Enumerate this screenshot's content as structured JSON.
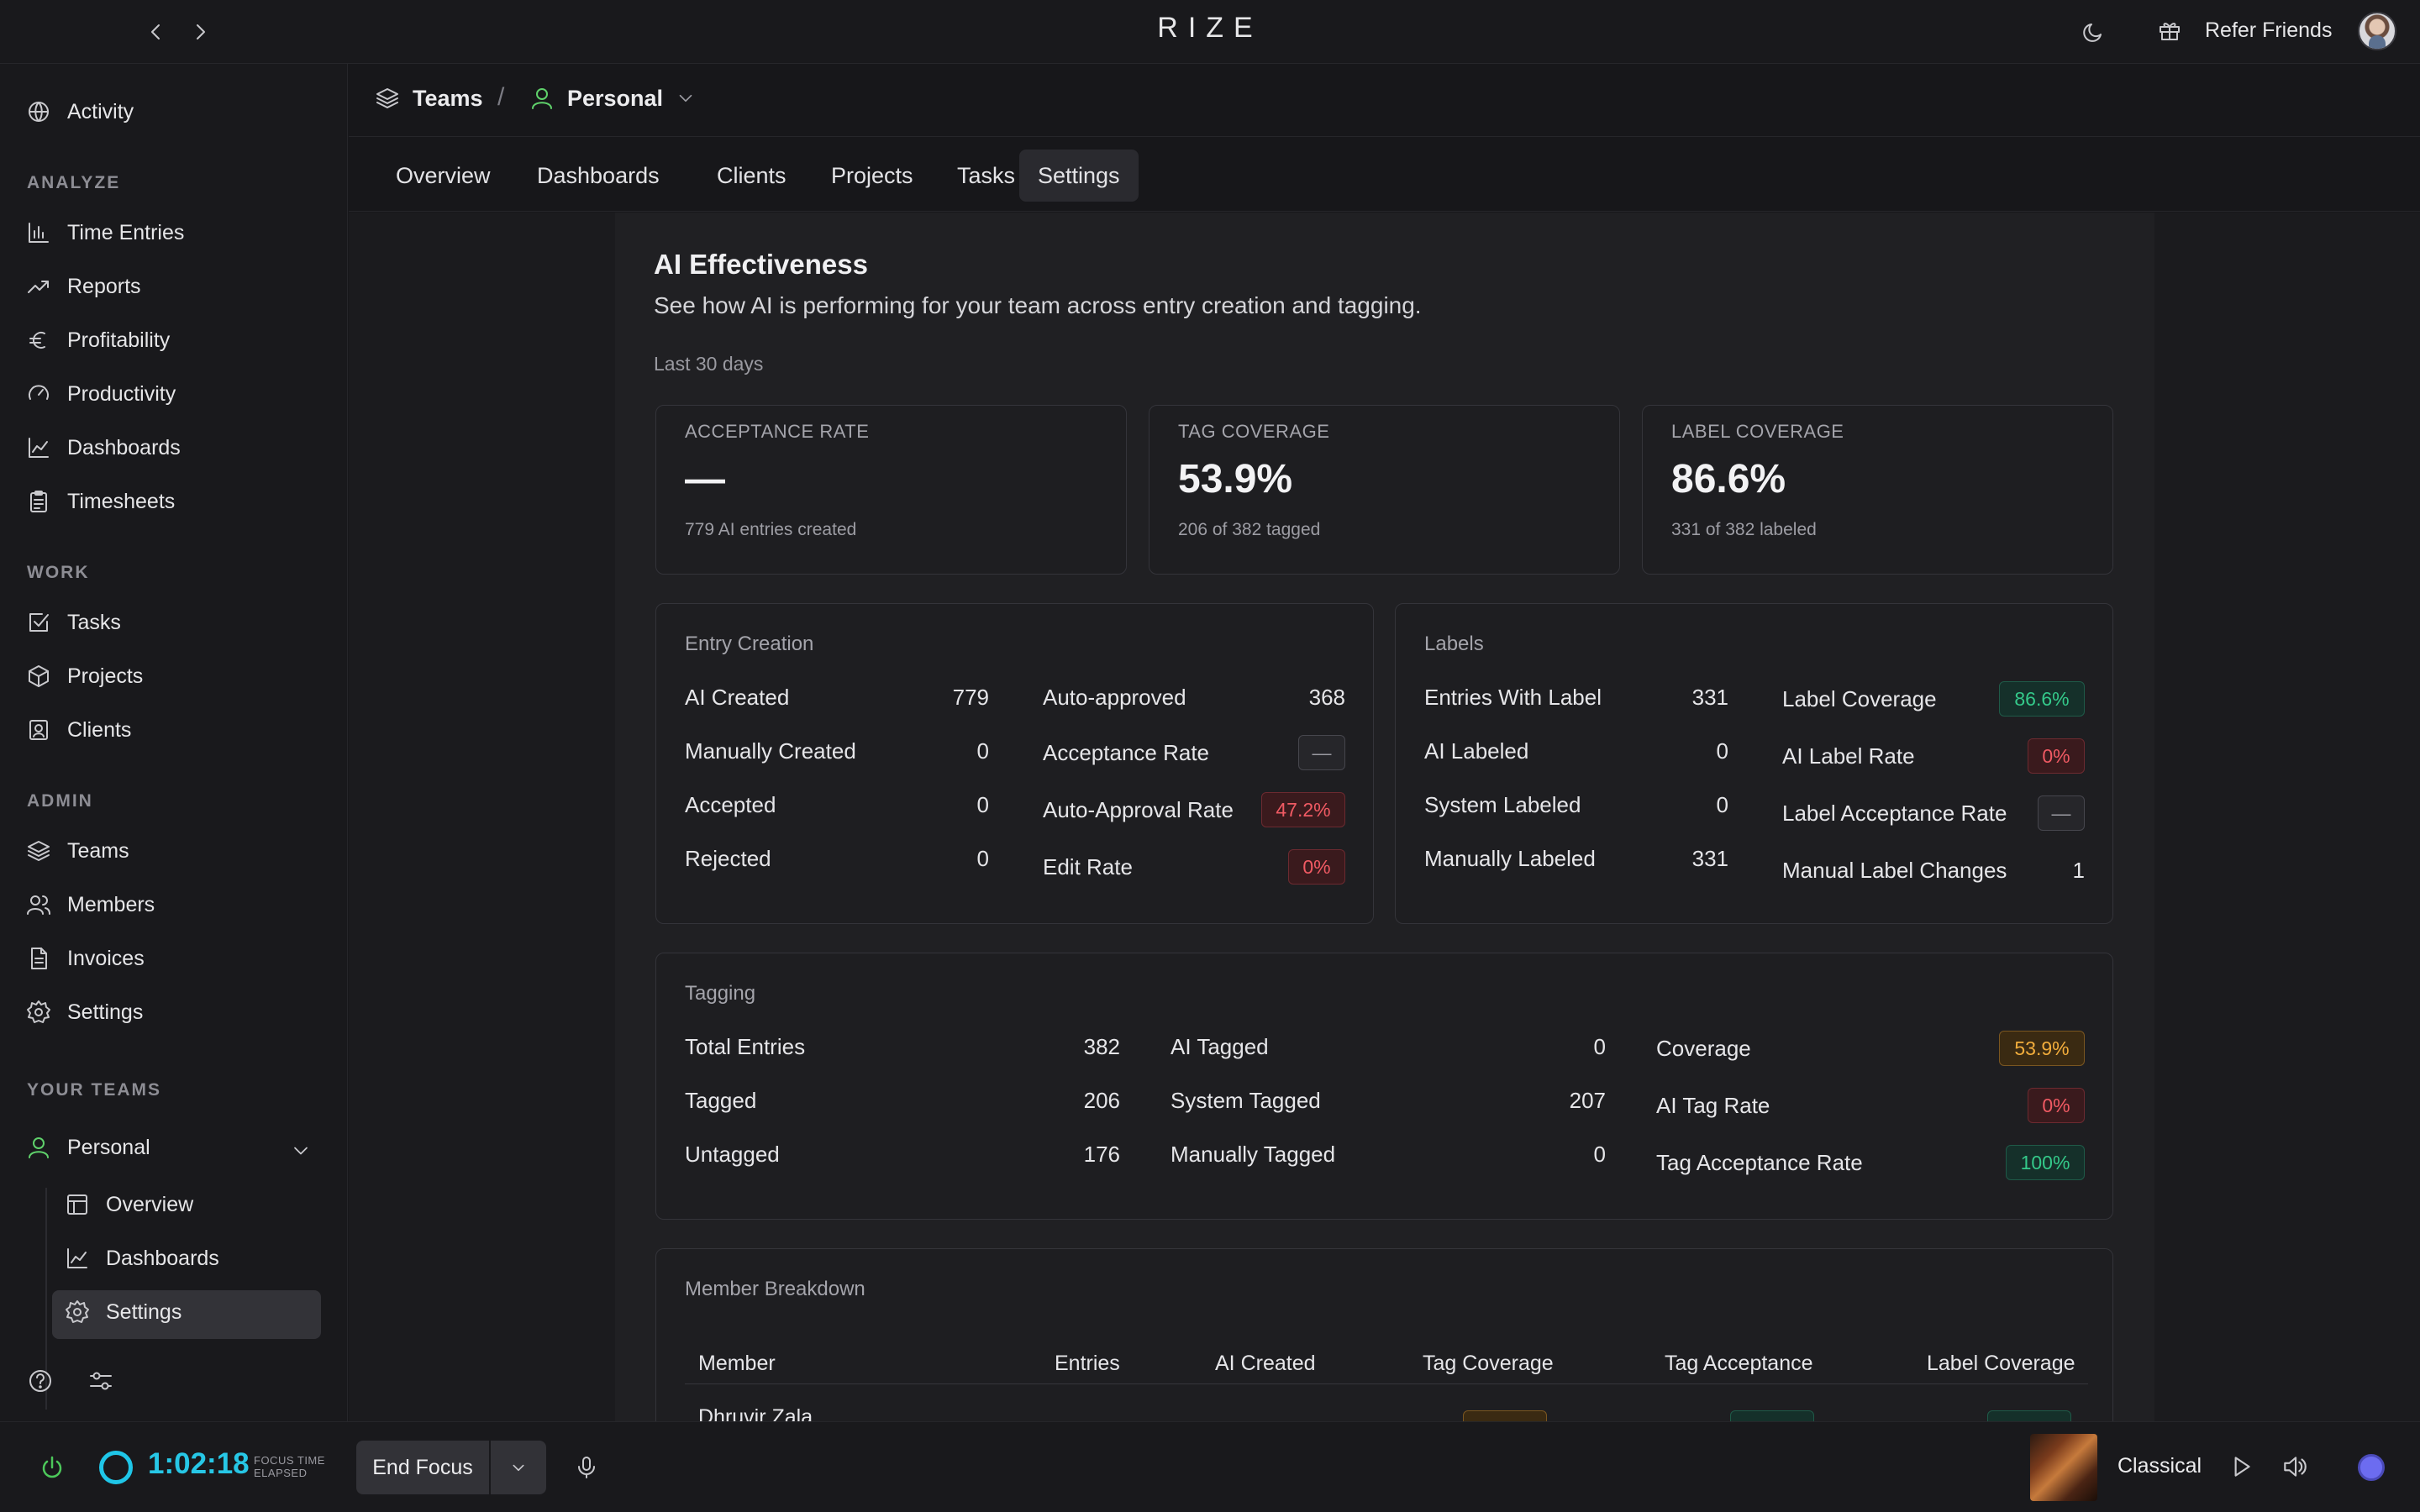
{
  "app": {
    "brand": "RIZE",
    "refer_label": "Refer Friends"
  },
  "sidebar": {
    "top_item": "Activity",
    "sections": {
      "analyze": "ANALYZE",
      "work": "WORK",
      "admin": "ADMIN",
      "your_teams": "YOUR TEAMS"
    },
    "analyze_items": [
      "Time Entries",
      "Reports",
      "Profitability",
      "Productivity",
      "Dashboards",
      "Timesheets"
    ],
    "work_items": [
      "Tasks",
      "Projects",
      "Clients"
    ],
    "admin_items": [
      "Teams",
      "Members",
      "Invoices",
      "Settings"
    ],
    "team": {
      "name": "Personal",
      "items": [
        "Overview",
        "Dashboards",
        "Settings"
      ]
    }
  },
  "breadcrumb": {
    "root": "Teams",
    "separator": "/",
    "current": "Personal"
  },
  "tabs": [
    "Overview",
    "Dashboards",
    "Clients",
    "Projects",
    "Tasks",
    "Settings"
  ],
  "page": {
    "title": "AI Effectiveness",
    "description": "See how AI is performing for your team across entry creation and tagging.",
    "period": "Last 30 days"
  },
  "kpis": [
    {
      "label": "ACCEPTANCE RATE",
      "value": "—",
      "sub": "779 AI entries created"
    },
    {
      "label": "TAG COVERAGE",
      "value": "53.9%",
      "sub": "206 of 382 tagged"
    },
    {
      "label": "LABEL COVERAGE",
      "value": "86.6%",
      "sub": "331 of 382 labeled"
    }
  ],
  "entry_creation": {
    "title": "Entry Creation",
    "left": [
      {
        "label": "AI Created",
        "value": "779"
      },
      {
        "label": "Manually Created",
        "value": "0"
      },
      {
        "label": "Accepted",
        "value": "0"
      },
      {
        "label": "Rejected",
        "value": "0"
      }
    ],
    "right": [
      {
        "label": "Auto-approved",
        "value": "368"
      },
      {
        "label": "Acceptance Rate",
        "badge": "—"
      },
      {
        "label": "Auto-Approval Rate",
        "badge": "47.2%"
      },
      {
        "label": "Edit Rate",
        "badge": "0%"
      }
    ]
  },
  "labels": {
    "title": "Labels",
    "left": [
      {
        "label": "Entries With Label",
        "value": "331"
      },
      {
        "label": "AI Labeled",
        "value": "0"
      },
      {
        "label": "System Labeled",
        "value": "0"
      },
      {
        "label": "Manually Labeled",
        "value": "331"
      }
    ],
    "right": [
      {
        "label": "Label Coverage",
        "badge": "86.6%"
      },
      {
        "label": "AI Label Rate",
        "badge": "0%"
      },
      {
        "label": "Label Acceptance Rate",
        "badge": "—"
      },
      {
        "label": "Manual Label Changes",
        "value": "1"
      }
    ]
  },
  "tagging": {
    "title": "Tagging",
    "col1": [
      {
        "label": "Total Entries",
        "value": "382"
      },
      {
        "label": "Tagged",
        "value": "206"
      },
      {
        "label": "Untagged",
        "value": "176"
      }
    ],
    "col2": [
      {
        "label": "AI Tagged",
        "value": "0"
      },
      {
        "label": "System Tagged",
        "value": "207"
      },
      {
        "label": "Manually Tagged",
        "value": "0"
      }
    ],
    "col3": [
      {
        "label": "Coverage",
        "badge": "53.9%"
      },
      {
        "label": "AI Tag Rate",
        "badge": "0%"
      },
      {
        "label": "Tag Acceptance Rate",
        "badge": "100%"
      }
    ]
  },
  "member_breakdown": {
    "title": "Member Breakdown",
    "headers": [
      "Member",
      "Entries",
      "AI Created",
      "Tag Coverage",
      "Tag Acceptance",
      "Label Coverage"
    ],
    "first_row_member": "Dhruvir Zala"
  },
  "bottombar": {
    "timer": "1:02:18",
    "timer_caption_1": "FOCUS TIME",
    "timer_caption_2": "ELAPSED",
    "end_focus": "End Focus",
    "track": "Classical"
  },
  "colors": {
    "accent_timer": "#27c7e6",
    "badge_red": "#f05a63",
    "badge_green": "#34c98a",
    "badge_amber": "#f2ad3c",
    "team_icon": "#5fd16b"
  }
}
